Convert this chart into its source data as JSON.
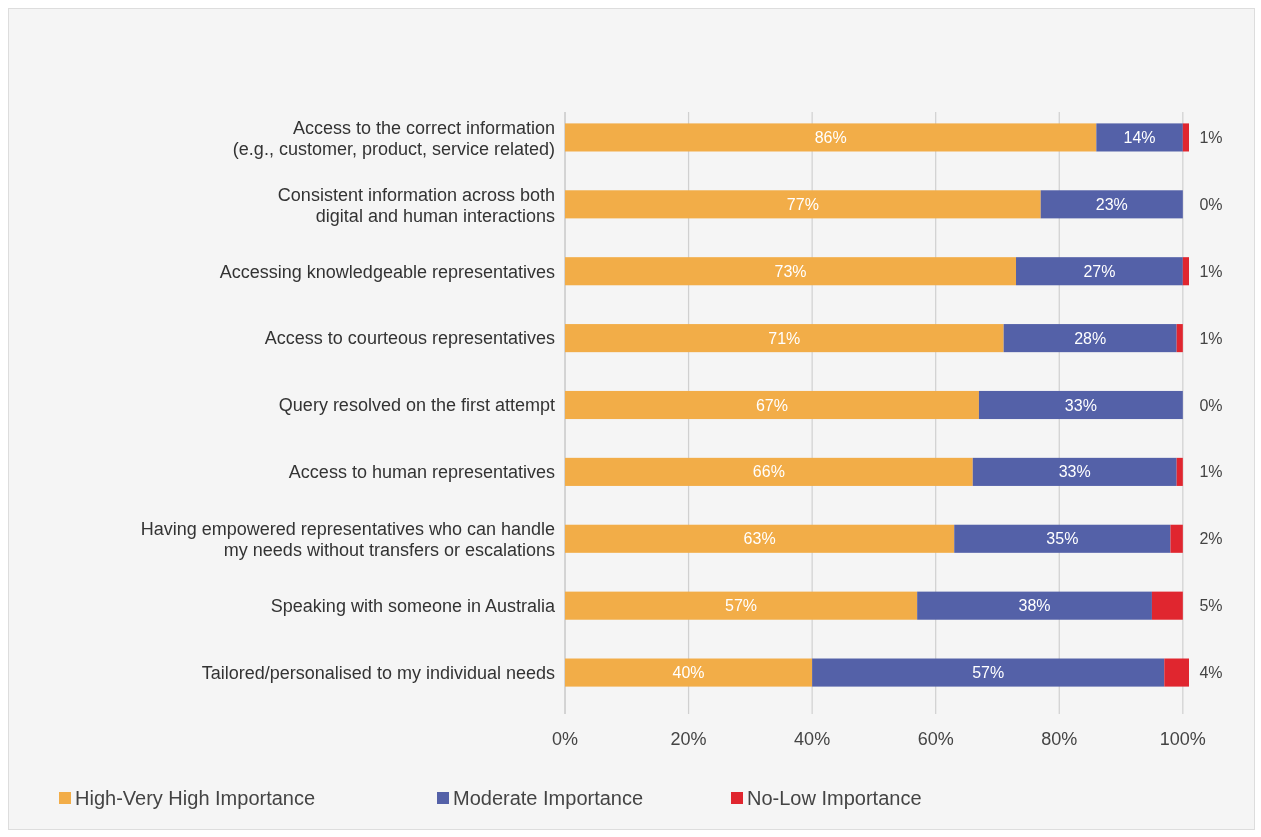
{
  "chart_data": {
    "type": "bar",
    "orientation": "horizontal",
    "stacked": true,
    "categories": [
      "Access to the correct information\n(e.g., customer, product, service related)",
      "Consistent information across both\ndigital and human interactions",
      "Accessing knowledgeable representatives",
      "Access to courteous representatives",
      "Query resolved on the first attempt",
      "Access to human representatives",
      "Having empowered representatives who can handle\nmy needs without transfers or escalations",
      "Speaking with someone in Australia",
      "Tailored/personalised to my individual needs"
    ],
    "series": [
      {
        "name": "High-Very High Importance",
        "color": "#f2ad48",
        "values": [
          86,
          77,
          73,
          71,
          67,
          66,
          63,
          57,
          40
        ],
        "value_labels": [
          "86%",
          "77%",
          "73%",
          "71%",
          "67%",
          "66%",
          "63%",
          "57%",
          "40%"
        ]
      },
      {
        "name": "Moderate Importance",
        "color": "#5461a8",
        "values": [
          14,
          23,
          27,
          28,
          33,
          33,
          35,
          38,
          57
        ],
        "value_labels": [
          "14%",
          "23%",
          "27%",
          "28%",
          "33%",
          "33%",
          "35%",
          "38%",
          "57%"
        ]
      },
      {
        "name": "No-Low Importance",
        "color": "#e0262f",
        "values": [
          1,
          0,
          1,
          1,
          0,
          1,
          2,
          5,
          4
        ],
        "value_labels": [
          "1%",
          "0%",
          "1%",
          "1%",
          "0%",
          "1%",
          "2%",
          "5%",
          "4%"
        ]
      }
    ],
    "xlim": [
      0,
      101
    ],
    "xticks": [
      {
        "value": 0,
        "label": "0%"
      },
      {
        "value": 20,
        "label": "20%"
      },
      {
        "value": 40,
        "label": "40%"
      },
      {
        "value": 60,
        "label": "60%"
      },
      {
        "value": 80,
        "label": "80%"
      },
      {
        "value": 100,
        "label": "100%"
      }
    ],
    "grid": "x",
    "legend": "bottom left"
  }
}
